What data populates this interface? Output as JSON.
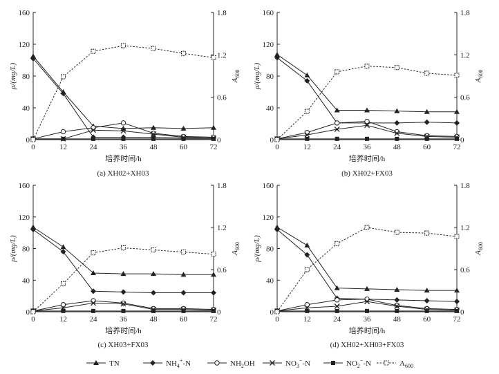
{
  "chart_data": [
    {
      "type": "line",
      "caption": "(a) XH02+XH03",
      "xlabel": "培养时间/h",
      "ylabel": "ρ/(mg/L)",
      "y2label": "A600",
      "x": [
        0,
        12,
        24,
        36,
        48,
        60,
        72
      ],
      "xticks": [
        "0",
        "12",
        "24",
        "36",
        "48",
        "60",
        "72"
      ],
      "xlim": [
        0,
        72
      ],
      "ylim": [
        0,
        160
      ],
      "yticks": [
        "0",
        "40",
        "80",
        "120",
        "160"
      ],
      "y2lim": [
        0,
        1.8
      ],
      "y2ticks": [
        "0",
        "0.6",
        "1.2",
        "1.8"
      ],
      "series": [
        {
          "name": "TN",
          "values": [
            105,
            60,
            17,
            14,
            15,
            14,
            15
          ]
        },
        {
          "name": "NH4+-N",
          "values": [
            102,
            58,
            3,
            3,
            3,
            2,
            2
          ]
        },
        {
          "name": "NH2OH",
          "values": [
            1,
            10,
            15,
            21,
            8,
            4,
            3
          ]
        },
        {
          "name": "NO3--N",
          "values": [
            1,
            1,
            12,
            11,
            7,
            3,
            2
          ]
        },
        {
          "name": "NO2--N",
          "values": [
            1,
            1,
            1,
            1,
            1,
            1,
            1
          ]
        },
        {
          "name": "A600",
          "axis": "right",
          "values": [
            0.0,
            0.89,
            1.25,
            1.33,
            1.29,
            1.22,
            1.16
          ]
        }
      ]
    },
    {
      "type": "line",
      "caption": "(b) XH02+FX03",
      "xlabel": "培养时间/h",
      "ylabel": "ρ/(mg/L)",
      "y2label": "A600",
      "x": [
        0,
        12,
        24,
        36,
        48,
        60,
        72
      ],
      "xticks": [
        "0",
        "12",
        "24",
        "36",
        "48",
        "60",
        "72"
      ],
      "xlim": [
        0,
        72
      ],
      "ylim": [
        0,
        160
      ],
      "yticks": [
        "0",
        "40",
        "80",
        "120",
        "160"
      ],
      "y2lim": [
        0,
        1.8
      ],
      "y2ticks": [
        "0",
        "0.6",
        "1.2",
        "1.8"
      ],
      "series": [
        {
          "name": "TN",
          "values": [
            107,
            81,
            37,
            37,
            36,
            35,
            35
          ]
        },
        {
          "name": "NH4+-N",
          "values": [
            103,
            74,
            21,
            21,
            21,
            22,
            21
          ]
        },
        {
          "name": "NH2OH",
          "values": [
            1,
            9,
            21,
            23,
            10,
            5,
            4
          ]
        },
        {
          "name": "NO3--N",
          "values": [
            1,
            6,
            13,
            18,
            8,
            4,
            3
          ]
        },
        {
          "name": "NO2--N",
          "values": [
            1,
            1,
            1,
            1,
            1,
            1,
            1
          ]
        },
        {
          "name": "A600",
          "axis": "right",
          "values": [
            0.0,
            0.4,
            0.96,
            1.04,
            1.02,
            0.94,
            0.91
          ]
        }
      ]
    },
    {
      "type": "line",
      "caption": "(c) XH03+FX03",
      "xlabel": "培养时间/h",
      "ylabel": "ρ/(mg/L)",
      "y2label": "A600",
      "x": [
        0,
        12,
        24,
        36,
        48,
        60,
        72
      ],
      "xticks": [
        "0",
        "12",
        "24",
        "36",
        "48",
        "60",
        "72"
      ],
      "xlim": [
        0,
        72
      ],
      "ylim": [
        0,
        160
      ],
      "yticks": [
        "0",
        "40",
        "80",
        "120",
        "160"
      ],
      "y2lim": [
        0,
        1.8
      ],
      "y2ticks": [
        "0",
        "0.6",
        "1.2",
        "1.8"
      ],
      "series": [
        {
          "name": "TN",
          "values": [
            107,
            82,
            49,
            48,
            48,
            47,
            47
          ]
        },
        {
          "name": "NH4+-N",
          "values": [
            104,
            76,
            26,
            25,
            24,
            24,
            24
          ]
        },
        {
          "name": "NH2OH",
          "values": [
            1,
            9,
            14,
            11,
            4,
            4,
            3
          ]
        },
        {
          "name": "NO3--N",
          "values": [
            1,
            5,
            11,
            10,
            3,
            3,
            2
          ]
        },
        {
          "name": "NO2--N",
          "values": [
            1,
            1,
            1,
            1,
            1,
            1,
            1
          ]
        },
        {
          "name": "A600",
          "axis": "right",
          "values": [
            0.0,
            0.4,
            0.84,
            0.91,
            0.88,
            0.85,
            0.82
          ]
        }
      ]
    },
    {
      "type": "line",
      "caption": "(d) XH02+XH03+FX03",
      "xlabel": "培养时间/h",
      "ylabel": "ρ/(mg/L)",
      "y2label": "A600",
      "x": [
        0,
        12,
        24,
        36,
        48,
        60,
        72
      ],
      "xticks": [
        "0",
        "12",
        "24",
        "36",
        "48",
        "60",
        "72"
      ],
      "xlim": [
        0,
        72
      ],
      "ylim": [
        0,
        160
      ],
      "yticks": [
        "0",
        "40",
        "80",
        "120",
        "160"
      ],
      "y2lim": [
        0,
        1.8
      ],
      "y2ticks": [
        "0",
        "0.6",
        "1.2",
        "1.8"
      ],
      "series": [
        {
          "name": "TN",
          "values": [
            107,
            84,
            30,
            29,
            28,
            27,
            27
          ]
        },
        {
          "name": "NH4+-N",
          "values": [
            104,
            72,
            17,
            16,
            15,
            14,
            13
          ]
        },
        {
          "name": "NH2OH",
          "values": [
            1,
            9,
            15,
            16,
            8,
            4,
            3
          ]
        },
        {
          "name": "NO3--N",
          "values": [
            1,
            5,
            7,
            13,
            7,
            3,
            2
          ]
        },
        {
          "name": "NO2--N",
          "values": [
            1,
            1,
            1,
            1,
            1,
            1,
            1
          ]
        },
        {
          "name": "A600",
          "axis": "right",
          "values": [
            0.0,
            0.6,
            0.97,
            1.2,
            1.13,
            1.12,
            1.07
          ]
        }
      ]
    }
  ],
  "legend": [
    {
      "key": "TN",
      "label": "TN",
      "base": "TN",
      "sup": "",
      "suffix": "",
      "marker": "triangle",
      "dash": false
    },
    {
      "key": "NH4+-N",
      "label": "NH4+-N",
      "base": "NH",
      "sub": "4",
      "sup": "+",
      "suffix": "-N",
      "marker": "diamond",
      "dash": false
    },
    {
      "key": "NH2OH",
      "label": "NH2OH",
      "base": "NH",
      "sub": "2",
      "sup": "",
      "suffix": "OH",
      "marker": "circle",
      "dash": false
    },
    {
      "key": "NO3--N",
      "label": "NO3--N",
      "base": "NO",
      "sub": "3",
      "sup": "−",
      "suffix": "-N",
      "marker": "cross",
      "dash": false
    },
    {
      "key": "NO2--N",
      "label": "NO2--N",
      "base": "NO",
      "sub": "2",
      "sup": "−",
      "suffix": "-N",
      "marker": "square",
      "dash": false
    },
    {
      "key": "A600",
      "label": "A600",
      "base": "A",
      "sub": "600",
      "sup": "",
      "suffix": "",
      "marker": "dotsquare",
      "dash": true
    }
  ]
}
